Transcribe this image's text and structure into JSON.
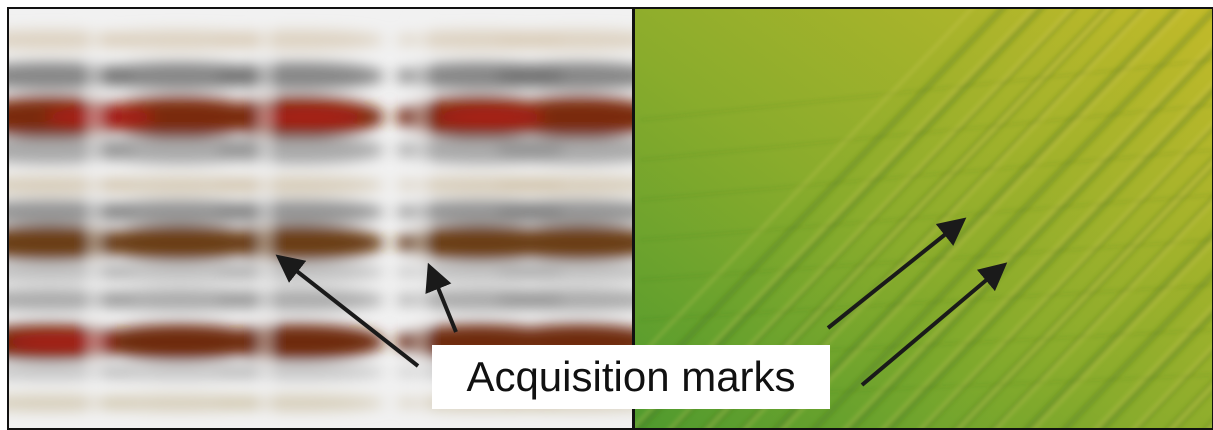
{
  "annotation": {
    "label": "Acquisition marks"
  }
}
